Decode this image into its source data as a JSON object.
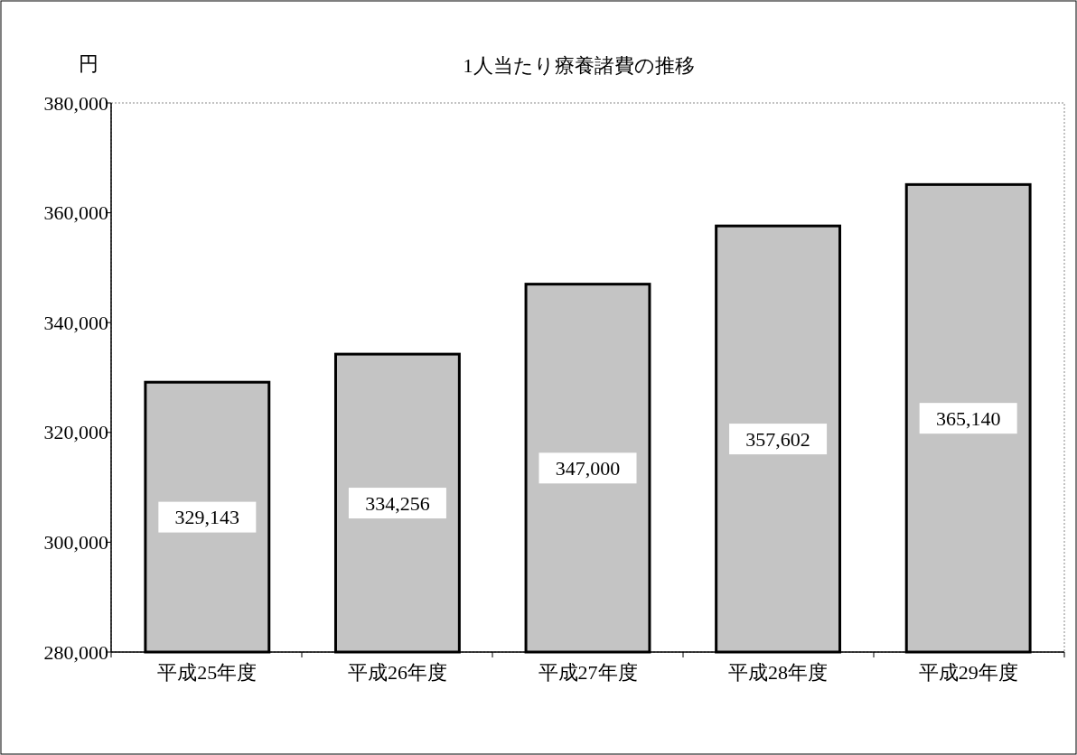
{
  "chart_data": {
    "type": "bar",
    "title": "1人当たり療養諸費の推移",
    "ylabel": "円",
    "categories": [
      "平成25年度",
      "平成26年度",
      "平成27年度",
      "平成28年度",
      "平成29年度"
    ],
    "values": [
      329143,
      334256,
      347000,
      357602,
      365140
    ],
    "color": "#c4c4c4",
    "ylim": [
      280000,
      380000
    ],
    "yticks": [
      {
        "value": 280000,
        "label": "280,000"
      },
      {
        "value": 300000,
        "label": "300,000"
      },
      {
        "value": 320000,
        "label": "320,000"
      },
      {
        "value": 340000,
        "label": "340,000"
      },
      {
        "value": 360000,
        "label": "360,000"
      },
      {
        "value": 380000,
        "label": "380,000"
      }
    ],
    "value_labels": [
      "329,143",
      "334,256",
      "347,000",
      "357,602",
      "365,140"
    ]
  }
}
